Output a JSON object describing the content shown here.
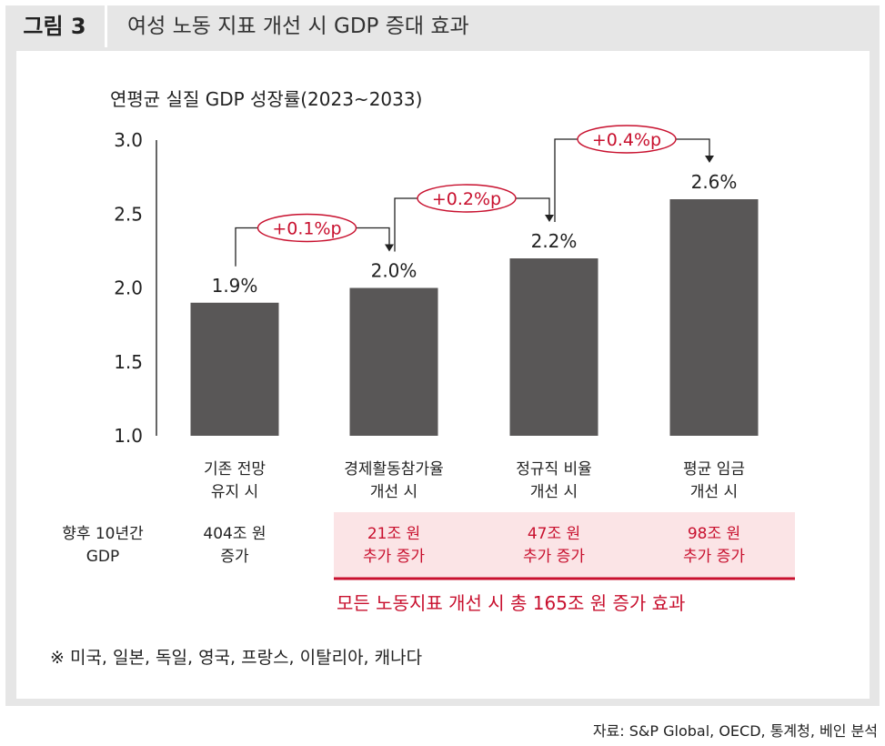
{
  "header": {
    "label": "그림 3",
    "title": "여성 노동 지표 개선 시 GDP 증대 효과"
  },
  "colors": {
    "bar": "#595757",
    "accent": "#c8102e",
    "highlight_bg": "#fbe4e6",
    "frame": "#e6e6e6"
  },
  "chart_data": {
    "type": "bar",
    "title": "연평균 실질 GDP 성장률(2023~2033)",
    "categories": [
      [
        "기존 전망",
        "유지 시"
      ],
      [
        "경제활동참가율",
        "개선 시"
      ],
      [
        "정규직 비율",
        "개선 시"
      ],
      [
        "평균 임금",
        "개선 시"
      ]
    ],
    "values": [
      1.9,
      2.0,
      2.2,
      2.6
    ],
    "value_labels": [
      "1.9%",
      "2.0%",
      "2.2%",
      "2.6%"
    ],
    "ylim": [
      1.0,
      3.0
    ],
    "yticks": [
      "1.0",
      "1.5",
      "2.0",
      "2.5",
      "3.0"
    ],
    "grid": false,
    "increments": [
      "+0.1%p",
      "+0.2%p",
      "+0.4%p"
    ]
  },
  "gdp_row": {
    "label": [
      "향후 10년간",
      "GDP"
    ],
    "cells": [
      [
        "404조 원",
        "증가"
      ],
      [
        "21조 원",
        "추가 증가"
      ],
      [
        "47조 원",
        "추가 증가"
      ],
      [
        "98조 원",
        "추가 증가"
      ]
    ],
    "total": "모든 노동지표 개선 시 총 165조 원 증가 효과"
  },
  "footnote": "※ 미국, 일본, 독일, 영국, 프랑스, 이탈리아, 캐나다",
  "source": "자료: S&P Global, OECD, 통계청, 베인 분석"
}
